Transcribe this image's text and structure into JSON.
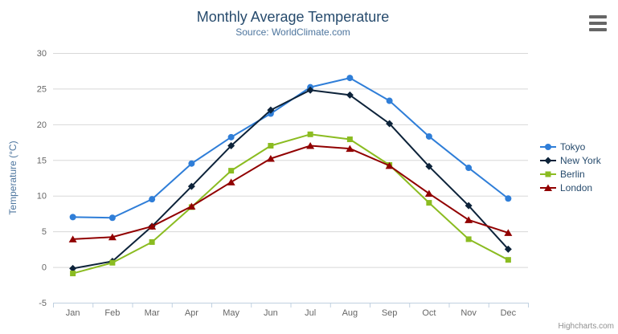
{
  "credits": "Highcharts.com",
  "chart_data": {
    "type": "line",
    "title": "Monthly Average Temperature",
    "subtitle": "Source: WorldClimate.com",
    "categories": [
      "Jan",
      "Feb",
      "Mar",
      "Apr",
      "May",
      "Jun",
      "Jul",
      "Aug",
      "Sep",
      "Oct",
      "Nov",
      "Dec"
    ],
    "xlabel": "",
    "ylabel": "Temperature (°C)",
    "ylim": [
      -5,
      30
    ],
    "ytick_step": 5,
    "grid": true,
    "legend_position": "right",
    "series": [
      {
        "name": "Tokyo",
        "color": "#2f7ed8",
        "marker": "circle",
        "values": [
          7.0,
          6.9,
          9.5,
          14.5,
          18.2,
          21.5,
          25.2,
          26.5,
          23.3,
          18.3,
          13.9,
          9.6
        ]
      },
      {
        "name": "New York",
        "color": "#0d233a",
        "marker": "diamond",
        "values": [
          -0.2,
          0.8,
          5.7,
          11.3,
          17.0,
          22.0,
          24.8,
          24.1,
          20.1,
          14.1,
          8.6,
          2.5
        ]
      },
      {
        "name": "Berlin",
        "color": "#8bbc21",
        "marker": "square",
        "values": [
          -0.9,
          0.6,
          3.5,
          8.4,
          13.5,
          17.0,
          18.6,
          17.9,
          14.3,
          9.0,
          3.9,
          1.0
        ]
      },
      {
        "name": "London",
        "color": "#910000",
        "marker": "triangle",
        "values": [
          3.9,
          4.2,
          5.7,
          8.5,
          11.9,
          15.2,
          17.0,
          16.6,
          14.2,
          10.3,
          6.6,
          4.8
        ]
      }
    ],
    "colors": {
      "title_text": "#274b6d",
      "subtitle_text": "#4d759e",
      "axis_title_text": "#4d759e",
      "tick_label_text": "#666666",
      "grid_line": "#d8d8d8",
      "axis_line": "#c0d0e0",
      "legend_text": "#274b6d",
      "credits_text": "#909090",
      "menu_icon": "#666666"
    }
  }
}
